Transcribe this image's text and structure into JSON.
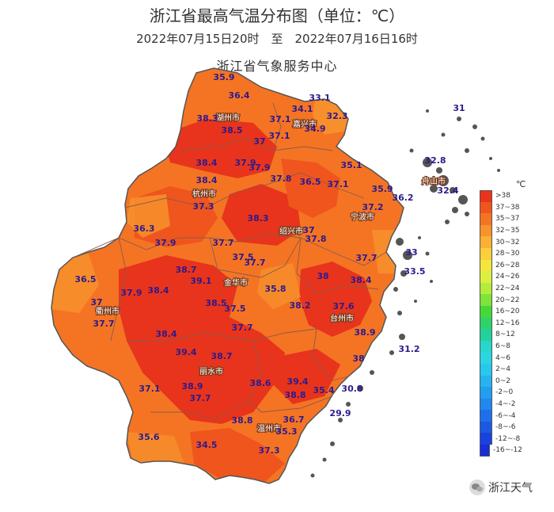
{
  "header": {
    "title": "浙江省最高气温分布图（单位：℃）",
    "date_range": "2022年07月15日20时　至　2022年07月16日16时",
    "source": "浙江省气象服务中心"
  },
  "cities": [
    {
      "name": "湖州市"
    },
    {
      "name": "嘉兴市"
    },
    {
      "name": "杭州市"
    },
    {
      "name": "绍兴市"
    },
    {
      "name": "舟山市"
    },
    {
      "name": "宁波市"
    },
    {
      "name": "衢州市"
    },
    {
      "name": "金华市"
    },
    {
      "name": "台州市"
    },
    {
      "name": "丽水市"
    },
    {
      "name": "温州市"
    }
  ],
  "stations": [
    {
      "v": "35.9"
    },
    {
      "v": "36.4"
    },
    {
      "v": "33.1"
    },
    {
      "v": "34.1"
    },
    {
      "v": "32.3"
    },
    {
      "v": "38.3"
    },
    {
      "v": "38.5"
    },
    {
      "v": "37.1"
    },
    {
      "v": "34.9"
    },
    {
      "v": "37"
    },
    {
      "v": "37.1"
    },
    {
      "v": "31"
    },
    {
      "v": "38.4"
    },
    {
      "v": "37.9"
    },
    {
      "v": "37.9"
    },
    {
      "v": "35.1"
    },
    {
      "v": "32.8"
    },
    {
      "v": "38.4"
    },
    {
      "v": "37.8"
    },
    {
      "v": "36.5"
    },
    {
      "v": "37.1"
    },
    {
      "v": "32.4"
    },
    {
      "v": "35.9"
    },
    {
      "v": "36.2"
    },
    {
      "v": "37.3"
    },
    {
      "v": "37.2"
    },
    {
      "v": "38.3"
    },
    {
      "v": "36.3"
    },
    {
      "v": "37"
    },
    {
      "v": "37.8"
    },
    {
      "v": "37.9"
    },
    {
      "v": "37.7"
    },
    {
      "v": "33"
    },
    {
      "v": "37.5"
    },
    {
      "v": "37.7"
    },
    {
      "v": "37.7"
    },
    {
      "v": "38.7"
    },
    {
      "v": "33.5"
    },
    {
      "v": "36.5"
    },
    {
      "v": "39.1"
    },
    {
      "v": "35.8"
    },
    {
      "v": "38"
    },
    {
      "v": "38.4"
    },
    {
      "v": "37.9"
    },
    {
      "v": "38.4"
    },
    {
      "v": "37"
    },
    {
      "v": "38.5"
    },
    {
      "v": "37.5"
    },
    {
      "v": "38.2"
    },
    {
      "v": "37.6"
    },
    {
      "v": "37.7"
    },
    {
      "v": "37.7"
    },
    {
      "v": "38.9"
    },
    {
      "v": "38.4"
    },
    {
      "v": "31.2"
    },
    {
      "v": "39.4"
    },
    {
      "v": "38.7"
    },
    {
      "v": "38"
    },
    {
      "v": "39.4"
    },
    {
      "v": "37.1"
    },
    {
      "v": "38.9"
    },
    {
      "v": "38.6"
    },
    {
      "v": "38.8"
    },
    {
      "v": "35.4"
    },
    {
      "v": "30.8"
    },
    {
      "v": "37.7"
    },
    {
      "v": "29.9"
    },
    {
      "v": "38.8"
    },
    {
      "v": "36.7"
    },
    {
      "v": "35.6"
    },
    {
      "v": "35.3"
    },
    {
      "v": "34.5"
    },
    {
      "v": "37.3"
    }
  ],
  "legend": {
    "unit": "℃",
    "items": [
      {
        "label": ">38",
        "color": "#e8341c"
      },
      {
        "label": "37~38",
        "color": "#f0551e"
      },
      {
        "label": "35~37",
        "color": "#f47424"
      },
      {
        "label": "32~35",
        "color": "#f7922c"
      },
      {
        "label": "30~32",
        "color": "#fbb034"
      },
      {
        "label": "28~30",
        "color": "#fdcf3a"
      },
      {
        "label": "26~28",
        "color": "#f5e63c"
      },
      {
        "label": "24~26",
        "color": "#dcef3e"
      },
      {
        "label": "22~24",
        "color": "#b4ec3c"
      },
      {
        "label": "20~22",
        "color": "#7fe33a"
      },
      {
        "label": "16~20",
        "color": "#45d838"
      },
      {
        "label": "12~16",
        "color": "#2ed26a"
      },
      {
        "label": "8~12",
        "color": "#24d19c"
      },
      {
        "label": "6~8",
        "color": "#28d6cc"
      },
      {
        "label": "4~6",
        "color": "#2ad6e2"
      },
      {
        "label": "2~4",
        "color": "#28c8ee"
      },
      {
        "label": "0~2",
        "color": "#25b4f0"
      },
      {
        "label": "-2~0",
        "color": "#229ef0"
      },
      {
        "label": "-4~-2",
        "color": "#2088ee"
      },
      {
        "label": "-6~-4",
        "color": "#1e70ea"
      },
      {
        "label": "-8~-6",
        "color": "#1c58e4"
      },
      {
        "label": "-12~-8",
        "color": "#1a42de"
      },
      {
        "label": "-16~-12",
        "color": "#182ed6"
      }
    ]
  },
  "watermark": {
    "text": "浙江天气"
  }
}
